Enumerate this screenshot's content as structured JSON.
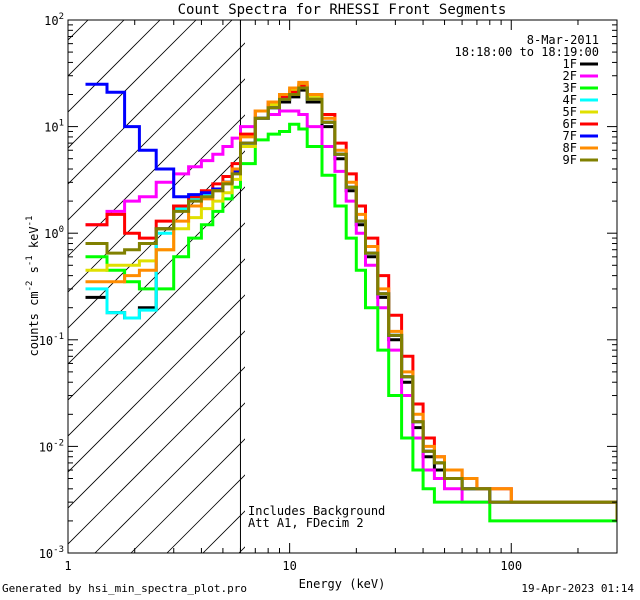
{
  "chart_data": {
    "type": "line",
    "title": "Count Spectra for RHESSI Front Segments",
    "xlabel": "Energy (keV)",
    "ylabel_parts": [
      "counts cm",
      "-2",
      " s",
      "-1",
      " keV",
      "-1"
    ],
    "xscale": "log",
    "yscale": "log",
    "xlim": [
      1,
      300
    ],
    "ylim": [
      0.001,
      100
    ],
    "x_tick_labels": [
      {
        "value": 1,
        "label": "1"
      },
      {
        "value": 10,
        "label": "10"
      },
      {
        "value": 100,
        "label": "100"
      }
    ],
    "y_tick_labels": [
      {
        "value": 0.001,
        "base": "10",
        "exp": "-3"
      },
      {
        "value": 0.01,
        "base": "10",
        "exp": "-2"
      },
      {
        "value": 0.1,
        "base": "10",
        "exp": "-1"
      },
      {
        "value": 1,
        "base": "10",
        "exp": "0"
      },
      {
        "value": 10,
        "base": "10",
        "exp": "1"
      },
      {
        "value": 100,
        "base": "10",
        "exp": "2"
      }
    ],
    "date_label": "8-Mar-2011",
    "time_label": "18:18:00 to 18:19:00",
    "shaded_region": {
      "x_from": 1,
      "x_to": 6,
      "style": "diagonal hatch"
    },
    "annotations": [
      "Includes Background",
      "Att A1, FDecim  2"
    ],
    "legend_position": "top-right",
    "series": [
      {
        "name": "1F",
        "color": "#000000",
        "x": [
          1.2,
          1.5,
          1.8,
          2.1,
          2.5,
          3.0,
          3.5,
          4.0,
          4.5,
          5.0,
          5.5,
          6.0,
          7.0,
          8.0,
          9.0,
          10.0,
          11.0,
          12.0,
          14.0,
          16.0,
          18.0,
          20.0,
          22.0,
          25.0,
          28.0,
          32.0,
          36.0,
          40.0,
          45.0,
          50.0,
          60.0,
          70.0,
          80.0,
          100.0,
          120.0,
          150.0,
          200.0,
          250.0,
          300.0
        ],
        "y": [
          0.25,
          0.18,
          0.16,
          0.2,
          1.1,
          1.8,
          2.2,
          2.3,
          2.6,
          3.0,
          3.8,
          7.0,
          12,
          15,
          17,
          19,
          22,
          17,
          10,
          5.0,
          2.5,
          1.2,
          0.6,
          0.25,
          0.1,
          0.04,
          0.015,
          0.008,
          0.006,
          0.005,
          0.004,
          0.004,
          0.003,
          0.003,
          0.003,
          0.003,
          0.003,
          0.003,
          0.002
        ]
      },
      {
        "name": "2F",
        "color": "#ff00ff",
        "x": [
          1.2,
          1.5,
          1.8,
          2.1,
          2.5,
          3.0,
          3.5,
          4.0,
          4.5,
          5.0,
          5.5,
          6.0,
          7.0,
          8.0,
          9.0,
          10.0,
          11.0,
          12.0,
          14.0,
          16.0,
          18.0,
          20.0,
          22.0,
          25.0,
          28.0,
          32.0,
          36.0,
          40.0,
          45.0,
          50.0,
          60.0,
          70.0,
          80.0,
          100.0,
          120.0,
          150.0,
          200.0,
          250.0,
          300.0
        ],
        "y": [
          1.2,
          1.6,
          2.0,
          2.2,
          3.0,
          3.6,
          4.2,
          4.8,
          5.5,
          6.5,
          7.8,
          10,
          12,
          13,
          14,
          14,
          13,
          10,
          6.5,
          3.8,
          2.0,
          1.0,
          0.5,
          0.2,
          0.08,
          0.03,
          0.012,
          0.006,
          0.005,
          0.004,
          0.003,
          0.003,
          0.003,
          0.003,
          0.003,
          0.003,
          0.003,
          0.003,
          0.002
        ]
      },
      {
        "name": "3F",
        "color": "#00ff00",
        "x": [
          1.2,
          1.5,
          1.8,
          2.1,
          2.5,
          3.0,
          3.5,
          4.0,
          4.5,
          5.0,
          5.5,
          6.0,
          7.0,
          8.0,
          9.0,
          10.0,
          11.0,
          12.0,
          14.0,
          16.0,
          18.0,
          20.0,
          22.0,
          25.0,
          28.0,
          32.0,
          36.0,
          40.0,
          45.0,
          50.0,
          60.0,
          70.0,
          80.0,
          100.0,
          120.0,
          150.0,
          200.0,
          250.0,
          300.0
        ],
        "y": [
          0.6,
          0.45,
          0.35,
          0.3,
          0.3,
          0.6,
          0.9,
          1.2,
          1.6,
          2.1,
          2.7,
          4.5,
          7.5,
          8.5,
          9.0,
          10.5,
          9.5,
          6.5,
          3.5,
          1.8,
          0.9,
          0.45,
          0.2,
          0.08,
          0.03,
          0.012,
          0.006,
          0.004,
          0.003,
          0.003,
          0.003,
          0.003,
          0.002,
          0.002,
          0.002,
          0.002,
          0.002,
          0.002,
          0.002
        ]
      },
      {
        "name": "4F",
        "color": "#00ffff",
        "x": [
          1.2,
          1.5,
          1.8,
          2.1,
          2.5,
          3.0,
          3.5,
          4.0,
          4.5,
          5.0,
          5.5,
          6.0,
          7.0,
          8.0,
          9.0,
          10.0,
          11.0,
          12.0,
          14.0,
          16.0,
          18.0,
          20.0,
          22.0,
          25.0,
          28.0,
          32.0,
          36.0,
          40.0,
          45.0,
          50.0,
          60.0,
          70.0,
          80.0,
          100.0,
          120.0,
          150.0,
          200.0,
          250.0,
          300.0
        ],
        "y": [
          0.3,
          0.18,
          0.16,
          0.19,
          1.0,
          1.7,
          2.1,
          2.3,
          2.6,
          3.0,
          3.9,
          7.0,
          12,
          15,
          18,
          20,
          23,
          18,
          11,
          5.5,
          2.7,
          1.3,
          0.65,
          0.27,
          0.11,
          0.045,
          0.017,
          0.009,
          0.007,
          0.005,
          0.004,
          0.004,
          0.003,
          0.003,
          0.003,
          0.003,
          0.003,
          0.003,
          0.002
        ]
      },
      {
        "name": "5F",
        "color": "#e0e000",
        "x": [
          1.2,
          1.5,
          1.8,
          2.1,
          2.5,
          3.0,
          3.5,
          4.0,
          4.5,
          5.0,
          5.5,
          6.0,
          7.0,
          8.0,
          9.0,
          10.0,
          11.0,
          12.0,
          14.0,
          16.0,
          18.0,
          20.0,
          22.0,
          25.0,
          28.0,
          32.0,
          36.0,
          40.0,
          45.0,
          50.0,
          60.0,
          70.0,
          80.0,
          100.0,
          120.0,
          150.0,
          200.0,
          250.0,
          300.0
        ],
        "y": [
          0.45,
          0.5,
          0.5,
          0.55,
          0.7,
          1.1,
          1.4,
          1.7,
          2.0,
          2.4,
          3.2,
          6.5,
          12,
          16,
          19,
          22,
          25,
          19,
          11,
          5.5,
          2.7,
          1.3,
          0.65,
          0.27,
          0.11,
          0.045,
          0.017,
          0.009,
          0.007,
          0.005,
          0.004,
          0.004,
          0.003,
          0.003,
          0.003,
          0.003,
          0.003,
          0.003,
          0.002
        ]
      },
      {
        "name": "6F",
        "color": "#ff0000",
        "x": [
          1.2,
          1.5,
          1.8,
          2.1,
          2.5,
          3.0,
          3.5,
          4.0,
          4.5,
          5.0,
          5.5,
          6.0,
          7.0,
          8.0,
          9.0,
          10.0,
          11.0,
          12.0,
          14.0,
          16.0,
          18.0,
          20.0,
          22.0,
          25.0,
          28.0,
          32.0,
          36.0,
          40.0,
          45.0,
          50.0,
          60.0,
          70.0,
          80.0,
          100.0,
          120.0,
          150.0,
          200.0,
          250.0,
          300.0
        ],
        "y": [
          1.2,
          1.5,
          1.0,
          0.9,
          1.3,
          1.8,
          2.2,
          2.5,
          2.9,
          3.4,
          4.5,
          8.5,
          14,
          17,
          19,
          21,
          24,
          20,
          13,
          7.0,
          3.6,
          1.8,
          0.9,
          0.4,
          0.17,
          0.07,
          0.025,
          0.012,
          0.008,
          0.006,
          0.005,
          0.004,
          0.004,
          0.003,
          0.003,
          0.003,
          0.003,
          0.003,
          0.002
        ]
      },
      {
        "name": "7F",
        "color": "#0000ff",
        "x": [
          1.2,
          1.5,
          1.8,
          2.1,
          2.5,
          3.0,
          3.5,
          4.0,
          4.5,
          5.0,
          5.5,
          6.0,
          7.0,
          8.0,
          9.0,
          10.0,
          11.0,
          12.0,
          14.0,
          16.0,
          18.0,
          20.0,
          22.0,
          25.0,
          28.0,
          32.0,
          36.0,
          40.0,
          45.0,
          50.0,
          60.0,
          70.0,
          80.0,
          100.0,
          120.0,
          150.0,
          200.0,
          250.0,
          300.0
        ],
        "y": [
          25,
          21,
          10,
          6.0,
          4.0,
          2.2,
          2.3,
          2.4,
          2.6,
          3.0,
          3.8,
          7.0,
          12,
          15,
          18,
          20,
          23,
          18,
          11,
          5.5,
          2.7,
          1.3,
          0.65,
          0.27,
          0.11,
          0.045,
          0.017,
          0.009,
          0.007,
          0.005,
          0.004,
          0.004,
          0.003,
          0.003,
          0.003,
          0.003,
          0.003,
          0.003,
          0.002
        ]
      },
      {
        "name": "8F",
        "color": "#ff8c00",
        "x": [
          1.2,
          1.5,
          1.8,
          2.1,
          2.5,
          3.0,
          3.5,
          4.0,
          4.5,
          5.0,
          5.5,
          6.0,
          7.0,
          8.0,
          9.0,
          10.0,
          11.0,
          12.0,
          14.0,
          16.0,
          18.0,
          20.0,
          22.0,
          25.0,
          28.0,
          32.0,
          36.0,
          40.0,
          45.0,
          50.0,
          60.0,
          70.0,
          80.0,
          100.0,
          120.0,
          150.0,
          200.0,
          250.0,
          300.0
        ],
        "y": [
          0.35,
          0.35,
          0.4,
          0.45,
          0.7,
          1.3,
          1.8,
          2.1,
          2.5,
          3.0,
          4.0,
          8.0,
          14,
          17,
          20,
          23,
          26,
          20,
          12,
          6.0,
          3.0,
          1.5,
          0.75,
          0.3,
          0.12,
          0.05,
          0.02,
          0.01,
          0.008,
          0.006,
          0.005,
          0.004,
          0.004,
          0.003,
          0.003,
          0.003,
          0.003,
          0.003,
          0.002
        ]
      },
      {
        "name": "9F",
        "color": "#808000",
        "x": [
          1.2,
          1.5,
          1.8,
          2.1,
          2.5,
          3.0,
          3.5,
          4.0,
          4.5,
          5.0,
          5.5,
          6.0,
          7.0,
          8.0,
          9.0,
          10.0,
          11.0,
          12.0,
          14.0,
          16.0,
          18.0,
          20.0,
          22.0,
          25.0,
          28.0,
          32.0,
          36.0,
          40.0,
          45.0,
          50.0,
          60.0,
          70.0,
          80.0,
          100.0,
          120.0,
          150.0,
          200.0,
          250.0,
          300.0
        ],
        "y": [
          0.8,
          0.65,
          0.7,
          0.8,
          1.1,
          1.6,
          2.0,
          2.2,
          2.5,
          2.9,
          3.6,
          7.0,
          12,
          15,
          18,
          20,
          23,
          18,
          11,
          5.5,
          2.7,
          1.3,
          0.65,
          0.27,
          0.11,
          0.045,
          0.017,
          0.009,
          0.007,
          0.005,
          0.004,
          0.004,
          0.003,
          0.003,
          0.003,
          0.003,
          0.003,
          0.003,
          0.002
        ]
      }
    ]
  },
  "footer": {
    "generator": "Generated by hsi_min_spectra_plot.pro",
    "timestamp": "19-Apr-2023 01:14"
  }
}
